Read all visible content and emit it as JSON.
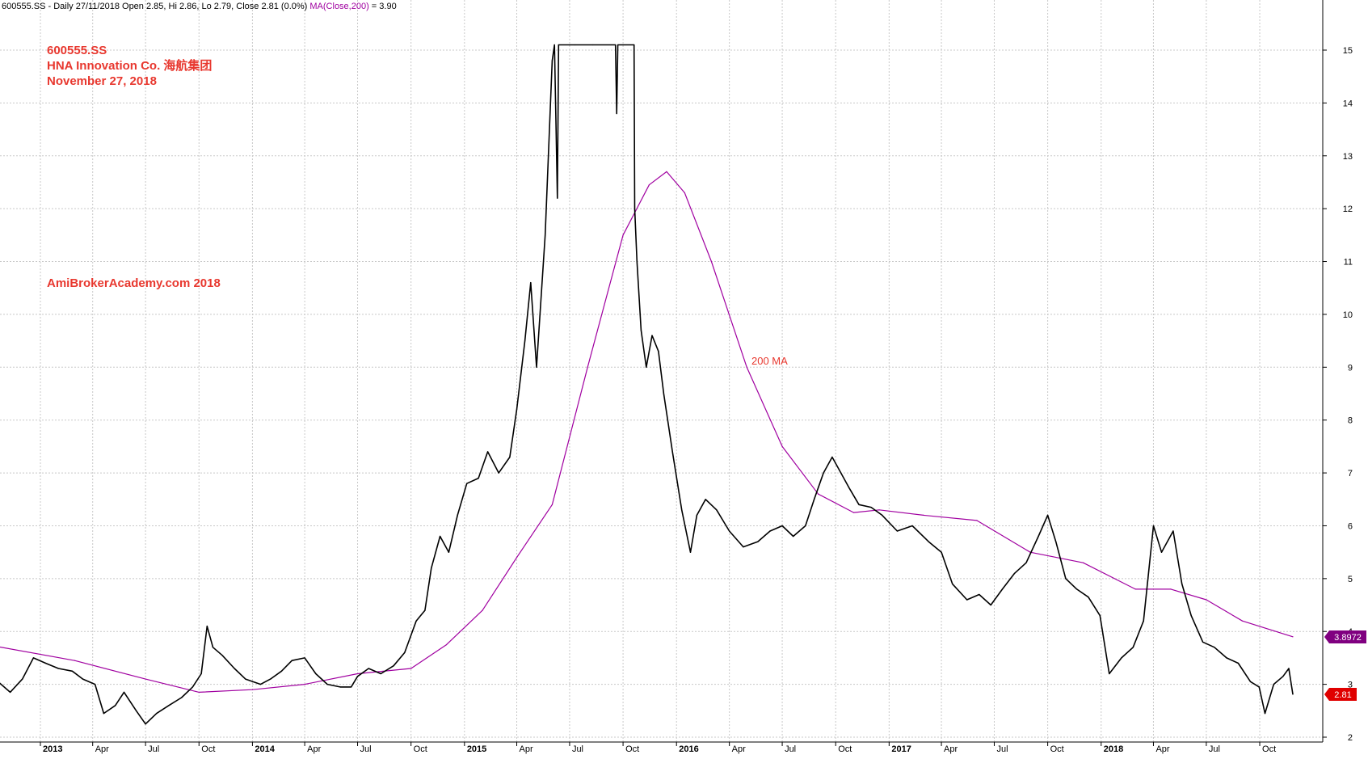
{
  "header": {
    "symbol": "600555.SS",
    "text": " - Daily 27/11/2018 Open 2.85, Hi 2.86, Lo 2.79, Close 2.81 (0.0%) ",
    "ma_label": "MA(Close,200)",
    "ma_value_text": " = 3.90"
  },
  "annotations": {
    "ticker": "600555.SS",
    "company": "HNA Innovation Co. 海航集团",
    "date": "November 27, 2018",
    "watermark": "AmiBrokerAcademy.com  2018",
    "ma_label": "200 MA"
  },
  "colors": {
    "price": "#000000",
    "ma": "#a000a0",
    "annotation": "#e8382f",
    "grid": "#c8c8c8",
    "ma_badge": "#800080",
    "price_badge": "#e00000"
  },
  "chart_data": {
    "type": "line",
    "title": "",
    "xlabel": "",
    "ylabel": "",
    "ylim": [
      2,
      15.5
    ],
    "xlim": [
      "2012-10-01",
      "2018-12-10"
    ],
    "y_ticks": [
      2,
      3,
      4,
      5,
      6,
      7,
      8,
      9,
      10,
      11,
      12,
      13,
      14,
      15
    ],
    "x_ticks": [
      {
        "label": "2013",
        "date": "2013-01-01",
        "bold": true
      },
      {
        "label": "Apr",
        "date": "2013-04-01"
      },
      {
        "label": "Jul",
        "date": "2013-07-01"
      },
      {
        "label": "Oct",
        "date": "2013-10-01"
      },
      {
        "label": "2014",
        "date": "2014-01-01",
        "bold": true
      },
      {
        "label": "Apr",
        "date": "2014-04-01"
      },
      {
        "label": "Jul",
        "date": "2014-07-01"
      },
      {
        "label": "Oct",
        "date": "2014-10-01"
      },
      {
        "label": "2015",
        "date": "2015-01-01",
        "bold": true
      },
      {
        "label": "Apr",
        "date": "2015-04-01"
      },
      {
        "label": "Jul",
        "date": "2015-07-01"
      },
      {
        "label": "Oct",
        "date": "2015-10-01"
      },
      {
        "label": "2016",
        "date": "2016-01-01",
        "bold": true
      },
      {
        "label": "Apr",
        "date": "2016-04-01"
      },
      {
        "label": "Jul",
        "date": "2016-07-01"
      },
      {
        "label": "Oct",
        "date": "2016-10-01"
      },
      {
        "label": "2017",
        "date": "2017-01-01",
        "bold": true
      },
      {
        "label": "Apr",
        "date": "2017-04-01"
      },
      {
        "label": "Jul",
        "date": "2017-07-01"
      },
      {
        "label": "Oct",
        "date": "2017-10-01"
      },
      {
        "label": "2018",
        "date": "2018-01-01",
        "bold": true
      },
      {
        "label": "Apr",
        "date": "2018-04-01"
      },
      {
        "label": "Jul",
        "date": "2018-07-01"
      },
      {
        "label": "Oct",
        "date": "2018-10-01"
      }
    ],
    "grid": true,
    "series": [
      {
        "name": "600555.SS",
        "style": "price",
        "points": [
          [
            "2012-10-01",
            3.25
          ],
          [
            "2012-10-20",
            3.05
          ],
          [
            "2012-11-10",
            2.85
          ],
          [
            "2012-12-01",
            3.1
          ],
          [
            "2012-12-20",
            3.5
          ],
          [
            "2013-01-10",
            3.4
          ],
          [
            "2013-02-01",
            3.3
          ],
          [
            "2013-02-25",
            3.25
          ],
          [
            "2013-03-15",
            3.1
          ],
          [
            "2013-04-05",
            3.0
          ],
          [
            "2013-04-20",
            2.45
          ],
          [
            "2013-05-10",
            2.6
          ],
          [
            "2013-05-25",
            2.85
          ],
          [
            "2013-06-15",
            2.5
          ],
          [
            "2013-07-01",
            2.25
          ],
          [
            "2013-07-20",
            2.45
          ],
          [
            "2013-08-10",
            2.6
          ],
          [
            "2013-09-01",
            2.75
          ],
          [
            "2013-09-20",
            2.95
          ],
          [
            "2013-10-05",
            3.2
          ],
          [
            "2013-10-15",
            4.1
          ],
          [
            "2013-10-25",
            3.7
          ],
          [
            "2013-11-10",
            3.55
          ],
          [
            "2013-12-01",
            3.3
          ],
          [
            "2013-12-20",
            3.1
          ],
          [
            "2014-01-15",
            3.0
          ],
          [
            "2014-02-01",
            3.1
          ],
          [
            "2014-02-20",
            3.25
          ],
          [
            "2014-03-10",
            3.45
          ],
          [
            "2014-04-01",
            3.5
          ],
          [
            "2014-04-20",
            3.2
          ],
          [
            "2014-05-10",
            3.0
          ],
          [
            "2014-06-01",
            2.95
          ],
          [
            "2014-06-20",
            2.95
          ],
          [
            "2014-07-01",
            3.15
          ],
          [
            "2014-07-20",
            3.3
          ],
          [
            "2014-08-10",
            3.2
          ],
          [
            "2014-09-01",
            3.35
          ],
          [
            "2014-09-20",
            3.6
          ],
          [
            "2014-10-10",
            4.2
          ],
          [
            "2014-10-25",
            4.4
          ],
          [
            "2014-11-05",
            5.2
          ],
          [
            "2014-11-20",
            5.8
          ],
          [
            "2014-12-05",
            5.5
          ],
          [
            "2014-12-20",
            6.2
          ],
          [
            "2015-01-05",
            6.8
          ],
          [
            "2015-01-25",
            6.9
          ],
          [
            "2015-02-10",
            7.4
          ],
          [
            "2015-03-01",
            7.0
          ],
          [
            "2015-03-20",
            7.3
          ],
          [
            "2015-04-01",
            8.2
          ],
          [
            "2015-04-15",
            9.5
          ],
          [
            "2015-04-25",
            10.6
          ],
          [
            "2015-05-05",
            9.0
          ],
          [
            "2015-05-20",
            11.5
          ],
          [
            "2015-06-01",
            14.8
          ],
          [
            "2015-06-05",
            15.1
          ],
          [
            "2015-06-10",
            12.2
          ],
          [
            "2015-06-12",
            15.1
          ],
          [
            "2015-07-10",
            15.1
          ],
          [
            "2015-08-10",
            15.1
          ],
          [
            "2015-09-10",
            15.1
          ],
          [
            "2015-09-18",
            15.1
          ],
          [
            "2015-09-20",
            13.8
          ],
          [
            "2015-09-22",
            15.1
          ],
          [
            "2015-10-20",
            15.1
          ],
          [
            "2015-10-21",
            12.0
          ],
          [
            "2015-10-25",
            11.0
          ],
          [
            "2015-11-01",
            9.7
          ],
          [
            "2015-11-10",
            9.0
          ],
          [
            "2015-11-20",
            9.6
          ],
          [
            "2015-12-01",
            9.3
          ],
          [
            "2015-12-10",
            8.5
          ],
          [
            "2015-12-25",
            7.4
          ],
          [
            "2016-01-10",
            6.3
          ],
          [
            "2016-01-25",
            5.5
          ],
          [
            "2016-02-05",
            6.2
          ],
          [
            "2016-02-20",
            6.5
          ],
          [
            "2016-03-10",
            6.3
          ],
          [
            "2016-04-01",
            5.9
          ],
          [
            "2016-04-25",
            5.6
          ],
          [
            "2016-05-20",
            5.7
          ],
          [
            "2016-06-10",
            5.9
          ],
          [
            "2016-07-01",
            6.0
          ],
          [
            "2016-07-20",
            5.8
          ],
          [
            "2016-08-10",
            6.0
          ],
          [
            "2016-08-25",
            6.5
          ],
          [
            "2016-09-10",
            7.0
          ],
          [
            "2016-09-25",
            7.3
          ],
          [
            "2016-10-10",
            7.0
          ],
          [
            "2016-10-25",
            6.7
          ],
          [
            "2016-11-10",
            6.4
          ],
          [
            "2016-12-01",
            6.35
          ],
          [
            "2016-12-20",
            6.2
          ],
          [
            "2017-01-15",
            5.9
          ],
          [
            "2017-02-10",
            6.0
          ],
          [
            "2017-03-10",
            5.7
          ],
          [
            "2017-04-01",
            5.5
          ],
          [
            "2017-04-20",
            4.9
          ],
          [
            "2017-05-15",
            4.6
          ],
          [
            "2017-06-05",
            4.7
          ],
          [
            "2017-06-25",
            4.5
          ],
          [
            "2017-07-15",
            4.8
          ],
          [
            "2017-08-05",
            5.1
          ],
          [
            "2017-08-25",
            5.3
          ],
          [
            "2017-09-15",
            5.8
          ],
          [
            "2017-10-01",
            6.2
          ],
          [
            "2017-10-15",
            5.7
          ],
          [
            "2017-11-01",
            5.0
          ],
          [
            "2017-11-20",
            4.8
          ],
          [
            "2017-12-10",
            4.65
          ],
          [
            "2017-12-30",
            4.3
          ],
          [
            "2018-01-15",
            3.2
          ],
          [
            "2018-02-05",
            3.5
          ],
          [
            "2018-02-25",
            3.7
          ],
          [
            "2018-03-15",
            4.2
          ],
          [
            "2018-04-01",
            6.0
          ],
          [
            "2018-04-15",
            5.5
          ],
          [
            "2018-05-05",
            5.9
          ],
          [
            "2018-05-20",
            4.9
          ],
          [
            "2018-06-05",
            4.3
          ],
          [
            "2018-06-25",
            3.8
          ],
          [
            "2018-07-15",
            3.7
          ],
          [
            "2018-08-05",
            3.5
          ],
          [
            "2018-08-25",
            3.4
          ],
          [
            "2018-09-15",
            3.05
          ],
          [
            "2018-09-30",
            2.95
          ],
          [
            "2018-10-10",
            2.45
          ],
          [
            "2018-10-25",
            3.0
          ],
          [
            "2018-11-10",
            3.15
          ],
          [
            "2018-11-20",
            3.3
          ],
          [
            "2018-11-27",
            2.81
          ]
        ]
      },
      {
        "name": "MA(Close,200)",
        "style": "ma",
        "points": [
          [
            "2012-10-01",
            3.75
          ],
          [
            "2013-03-01",
            3.45
          ],
          [
            "2013-07-01",
            3.1
          ],
          [
            "2013-10-01",
            2.85
          ],
          [
            "2014-01-01",
            2.9
          ],
          [
            "2014-04-01",
            3.0
          ],
          [
            "2014-07-01",
            3.2
          ],
          [
            "2014-10-01",
            3.3
          ],
          [
            "2014-12-01",
            3.75
          ],
          [
            "2015-02-01",
            4.4
          ],
          [
            "2015-04-01",
            5.4
          ],
          [
            "2015-06-01",
            6.4
          ],
          [
            "2015-08-01",
            9.0
          ],
          [
            "2015-10-01",
            11.5
          ],
          [
            "2015-11-15",
            12.45
          ],
          [
            "2015-12-15",
            12.7
          ],
          [
            "2016-01-15",
            12.3
          ],
          [
            "2016-03-01",
            11.0
          ],
          [
            "2016-05-01",
            9.0
          ],
          [
            "2016-07-01",
            7.5
          ],
          [
            "2016-09-01",
            6.6
          ],
          [
            "2016-11-01",
            6.25
          ],
          [
            "2016-12-15",
            6.3
          ],
          [
            "2017-03-01",
            6.2
          ],
          [
            "2017-06-01",
            6.1
          ],
          [
            "2017-09-01",
            5.5
          ],
          [
            "2017-12-01",
            5.3
          ],
          [
            "2018-03-01",
            4.8
          ],
          [
            "2018-05-01",
            4.8
          ],
          [
            "2018-07-01",
            4.6
          ],
          [
            "2018-09-01",
            4.2
          ],
          [
            "2018-11-27",
            3.9
          ]
        ]
      }
    ],
    "badges": [
      {
        "label": "3.8972",
        "value": 3.8972,
        "series": "MA(Close,200)"
      },
      {
        "label": "2.81",
        "value": 2.81,
        "series": "600555.SS"
      }
    ]
  }
}
